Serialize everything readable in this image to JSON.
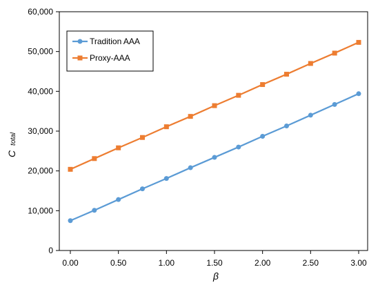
{
  "chart_data": {
    "type": "line",
    "xlabel": "β",
    "ylabel": {
      "main": "C",
      "sub": "total"
    },
    "x": [
      0.0,
      0.25,
      0.5,
      0.75,
      1.0,
      1.25,
      1.5,
      1.75,
      2.0,
      2.25,
      2.5,
      2.75,
      3.0
    ],
    "xlim": [
      0,
      3
    ],
    "ylim": [
      0,
      60000
    ],
    "x_ticks": [
      0,
      0.5,
      1,
      1.5,
      2,
      2.5,
      3
    ],
    "x_tick_labels": [
      "0.00",
      "0.50",
      "1.00",
      "1.50",
      "2.00",
      "2.50",
      "3.00"
    ],
    "y_ticks": [
      0,
      10000,
      20000,
      30000,
      40000,
      50000,
      60000
    ],
    "y_tick_labels": [
      "0",
      "10,000",
      "20,000",
      "30,000",
      "40,000",
      "50,000",
      "60,000"
    ],
    "grid": false,
    "legend_position": "top-left-inside",
    "series": [
      {
        "name": "Tradition AAA",
        "color": "#5b9bd5",
        "marker": "circle",
        "values": [
          7500,
          10100,
          12800,
          15500,
          18100,
          20800,
          23400,
          26000,
          28700,
          31300,
          34000,
          36700,
          39400
        ]
      },
      {
        "name": "Proxy-AAA",
        "color": "#ed7d31",
        "marker": "square",
        "values": [
          20400,
          23100,
          25800,
          28400,
          31100,
          33700,
          36400,
          39000,
          41700,
          44300,
          47000,
          49600,
          52300
        ]
      }
    ]
  }
}
